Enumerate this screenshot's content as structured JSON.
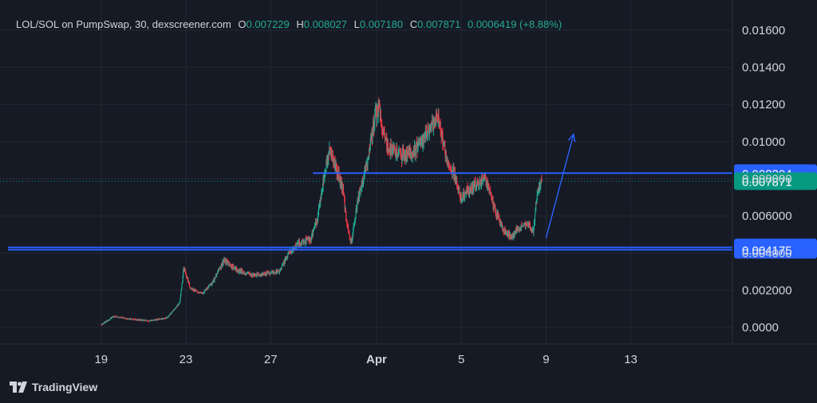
{
  "legend": {
    "symbol": "LOL/SOL on PumpSwap, 30, dexscreener.com",
    "o_label": "O",
    "o_value": "0.007229",
    "h_label": "H",
    "h_value": "0.008027",
    "l_label": "L",
    "l_value": "0.007180",
    "c_label": "C",
    "c_value": "0.007871",
    "change": "0.0006419 (+8.88%)"
  },
  "footer": {
    "brand": "TradingView"
  },
  "colors": {
    "background": "#161a25",
    "grid": "#242833",
    "up": "#22ab94",
    "down": "#f23645",
    "line": "#2962ff",
    "price_tag": "#089981"
  },
  "chart_data": {
    "type": "candlestick",
    "y_axis": {
      "range": [
        -0.0009,
        0.0172
      ],
      "ticks": [
        "0.01600",
        "0.01400",
        "0.01200",
        "0.01000",
        "0.008000",
        "0.006000",
        "0.004000",
        "0.002000",
        "0.0000"
      ],
      "tick_values": [
        0.016,
        0.014,
        0.012,
        0.01,
        0.008,
        0.006,
        0.004,
        0.002,
        0.0
      ]
    },
    "x_axis": {
      "ticks": [
        "19",
        "23",
        "27",
        "Apr",
        "5",
        "9",
        "13"
      ],
      "tick_days": [
        19,
        23,
        27,
        32,
        36,
        40,
        44
      ],
      "range_days": [
        14.6,
        48.8
      ]
    },
    "price_path": [
      [
        19.0,
        0.00015
      ],
      [
        19.6,
        0.0006
      ],
      [
        20.3,
        0.00045
      ],
      [
        21.3,
        0.00035
      ],
      [
        22.1,
        0.0005
      ],
      [
        22.7,
        0.0013
      ],
      [
        22.9,
        0.0032
      ],
      [
        23.2,
        0.0021
      ],
      [
        23.8,
        0.0018
      ],
      [
        24.3,
        0.0025
      ],
      [
        24.8,
        0.0036
      ],
      [
        25.4,
        0.0031
      ],
      [
        26.1,
        0.0028
      ],
      [
        26.8,
        0.0029
      ],
      [
        27.4,
        0.003
      ],
      [
        27.8,
        0.0039
      ],
      [
        28.3,
        0.0045
      ],
      [
        28.9,
        0.0048
      ],
      [
        29.2,
        0.0058
      ],
      [
        29.5,
        0.0081
      ],
      [
        29.8,
        0.0095
      ],
      [
        30.1,
        0.0085
      ],
      [
        30.4,
        0.0075
      ],
      [
        30.6,
        0.0055
      ],
      [
        30.8,
        0.0045
      ],
      [
        31.1,
        0.0068
      ],
      [
        31.5,
        0.0086
      ],
      [
        31.9,
        0.0112
      ],
      [
        32.1,
        0.0118
      ],
      [
        32.5,
        0.0098
      ],
      [
        33.1,
        0.0092
      ],
      [
        33.7,
        0.0094
      ],
      [
        34.3,
        0.0103
      ],
      [
        34.9,
        0.0113
      ],
      [
        35.3,
        0.0092
      ],
      [
        35.7,
        0.0082
      ],
      [
        36.0,
        0.0069
      ],
      [
        36.3,
        0.0074
      ],
      [
        36.8,
        0.0077
      ],
      [
        37.1,
        0.0081
      ],
      [
        37.6,
        0.0063
      ],
      [
        38.0,
        0.0052
      ],
      [
        38.4,
        0.0049
      ],
      [
        38.8,
        0.0054
      ],
      [
        39.2,
        0.0055
      ],
      [
        39.4,
        0.0052
      ],
      [
        39.6,
        0.0074
      ],
      [
        39.8,
        0.0078
      ]
    ],
    "last_price": 0.007871,
    "levels": [
      {
        "value": 0.008304,
        "label": "0.008304",
        "from_day": 29.0
      },
      {
        "value": 0.004306,
        "label": "0.004306",
        "from_day": 14.6
      },
      {
        "value": 0.004175,
        "label": "0.004175",
        "from_day": 14.6
      }
    ],
    "last_price_label": "0.007871",
    "annotations": [
      {
        "type": "arrow",
        "from": [
          40.0,
          0.0048
        ],
        "to": [
          41.3,
          0.0104
        ]
      }
    ]
  }
}
